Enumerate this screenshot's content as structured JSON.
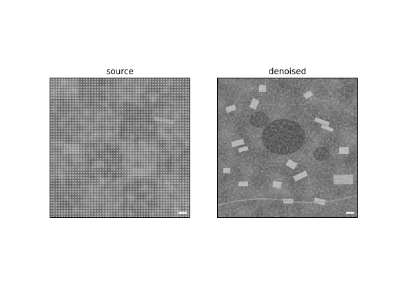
{
  "panels": [
    {
      "title": "source"
    },
    {
      "title": "denoised"
    }
  ],
  "colors": {
    "background": "#ffffff",
    "frame": "#000000",
    "source_noise_light": "#d0d0d0",
    "source_base": "#6a6a6a",
    "denoised_base": "#3c3c3c"
  }
}
